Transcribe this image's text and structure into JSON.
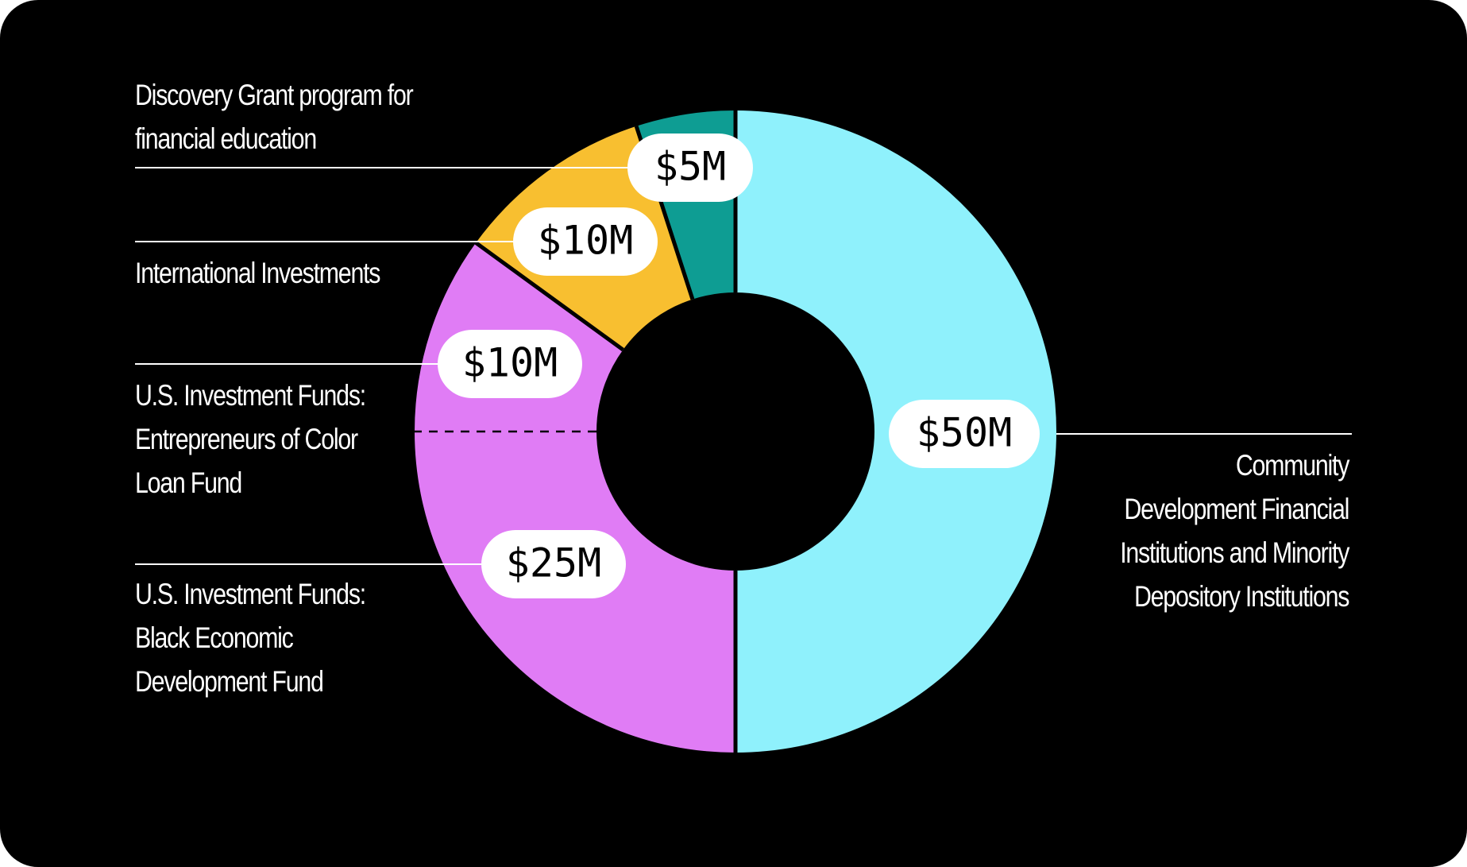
{
  "chart_data": {
    "type": "pie",
    "variant": "donut",
    "title": "",
    "unit": "$M",
    "slices": [
      {
        "category": "Community Development Financial Institutions and Minority Depository Institutions",
        "label_lines": [
          "Community",
          "Development Financial",
          "Institutions and Minority",
          "Depository Institutions"
        ],
        "value": 50,
        "display": "$50M",
        "color": "#8ff1fc"
      },
      {
        "category": "U.S. Investment Funds: Black Economic Development Fund",
        "label_lines": [
          "U.S. Investment Funds:",
          "Black Economic",
          "Development Fund"
        ],
        "value": 25,
        "display": "$25M",
        "color": "#e07cf5"
      },
      {
        "category": "U.S. Investment Funds: Entrepreneurs of Color Loan Fund",
        "label_lines": [
          "U.S. Investment Funds:",
          "Entrepreneurs of Color",
          "Loan Fund"
        ],
        "value": 10,
        "display": "$10M",
        "color": "#e07cf5"
      },
      {
        "category": "International Investments",
        "label_lines": [
          "International Investments"
        ],
        "value": 10,
        "display": "$10M",
        "color": "#f8bf30"
      },
      {
        "category": "Discovery Grant program for financial education",
        "label_lines": [
          "Discovery Grant program for",
          "financial education"
        ],
        "value": 5,
        "display": "$5M",
        "color": "#0e9d93"
      }
    ]
  }
}
